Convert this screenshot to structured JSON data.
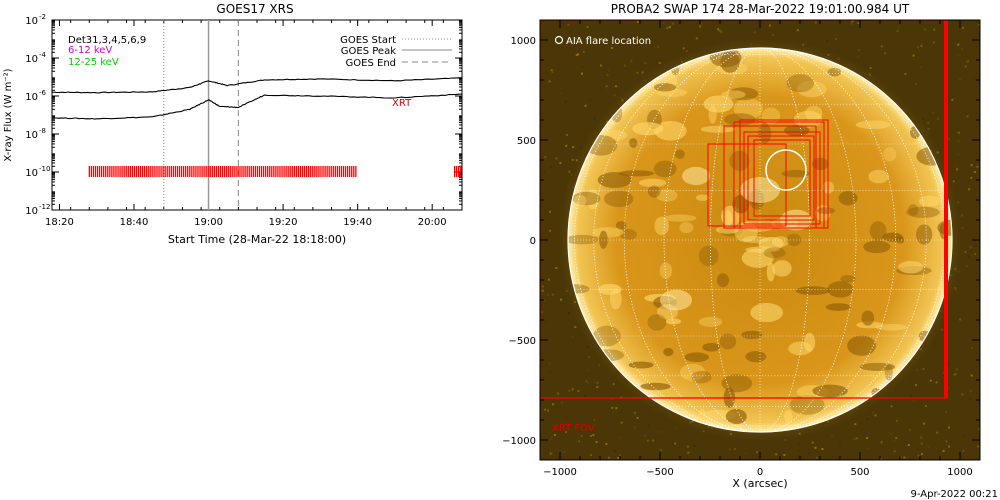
{
  "chart_data": [
    {
      "type": "line",
      "title": "GOES17 XRS",
      "xlabel": "Start Time (28-Mar-22 18:18:00)",
      "ylabel": "X-ray Flux (W m⁻²)",
      "ylog": true,
      "ylim": [
        "1e-12",
        "1e-2"
      ],
      "x_range_minutes_after_1800": [
        18,
        128
      ],
      "x_ticks": [
        {
          "m": 20,
          "label": "18:20"
        },
        {
          "m": 40,
          "label": "18:40"
        },
        {
          "m": 60,
          "label": "19:00"
        },
        {
          "m": 80,
          "label": "19:20"
        },
        {
          "m": 100,
          "label": "19:40"
        },
        {
          "m": 120,
          "label": "20:00"
        }
      ],
      "y_ticks": [
        {
          "exp": -2,
          "label": "10"
        },
        {
          "exp": -4,
          "label": "10"
        },
        {
          "exp": -6,
          "label": "10"
        },
        {
          "exp": -8,
          "label": "10"
        },
        {
          "exp": -10,
          "label": "10"
        },
        {
          "exp": -12,
          "label": "10"
        }
      ],
      "series": [
        {
          "name": "6-12 keV",
          "color": "#000000",
          "points_minute_log10": [
            [
              18,
              -5.8
            ],
            [
              30,
              -5.82
            ],
            [
              45,
              -5.78
            ],
            [
              55,
              -5.55
            ],
            [
              60,
              -5.2
            ],
            [
              65,
              -5.45
            ],
            [
              75,
              -5.15
            ],
            [
              90,
              -5.1
            ],
            [
              110,
              -5.2
            ],
            [
              128,
              -5.05
            ]
          ]
        },
        {
          "name": "12-25 keV",
          "color": "#000000",
          "points_minute_log10": [
            [
              18,
              -7.15
            ],
            [
              30,
              -7.2
            ],
            [
              45,
              -7.1
            ],
            [
              55,
              -6.7
            ],
            [
              60,
              -6.2
            ],
            [
              63,
              -6.55
            ],
            [
              68,
              -6.6
            ],
            [
              75,
              -5.95
            ],
            [
              90,
              -6.0
            ],
            [
              110,
              -6.1
            ],
            [
              128,
              -5.9
            ]
          ]
        }
      ],
      "goes_start_minute": 48,
      "goes_peak_minute": 60,
      "goes_end_minute": 68,
      "red_marker_log10": -10,
      "red_marker_ranges_minutes": [
        [
          28,
          100
        ],
        [
          126,
          128
        ]
      ],
      "legend": {
        "dets": "Det31,3,4,5,6,9",
        "low": "6-12 keV",
        "high": "12-25 keV",
        "low_color": "#cc00cc",
        "high_color": "#00cc00",
        "start": "GOES Start",
        "peak": "GOES Peak",
        "end": "GOES End"
      },
      "xrt_label": "XRT"
    },
    {
      "type": "image",
      "title": "PROBA2 SWAP 174 28-Mar-2022 19:01:00.984 UT",
      "xlabel": "X (arcsec)",
      "ylabel": "",
      "xlim": [
        -1100,
        1100
      ],
      "ylim": [
        -1100,
        1100
      ],
      "x_ticks": [
        -1000,
        -500,
        0,
        500,
        1000
      ],
      "y_ticks": [
        -1000,
        -500,
        0,
        500,
        1000
      ],
      "solar_radius_arcsec": 960,
      "aia_flare_location": {
        "x": 130,
        "y": 350,
        "r": 100
      },
      "aia_label": "AIA flare location",
      "xrt_fov_label": "XRT FOV",
      "xrt_fov_box": [
        -1100,
        -790,
        930,
        1100
      ],
      "xrt_boxes": [
        [
          -180,
          60,
          280,
          570
        ],
        [
          -130,
          60,
          320,
          590
        ],
        [
          -100,
          60,
          340,
          600
        ],
        [
          -80,
          80,
          300,
          540
        ],
        [
          -60,
          100,
          270,
          520
        ],
        [
          -260,
          70,
          130,
          480
        ],
        [
          -30,
          120,
          250,
          500
        ]
      ]
    }
  ],
  "footer": {
    "date": "9-Apr-2022 00:21"
  }
}
